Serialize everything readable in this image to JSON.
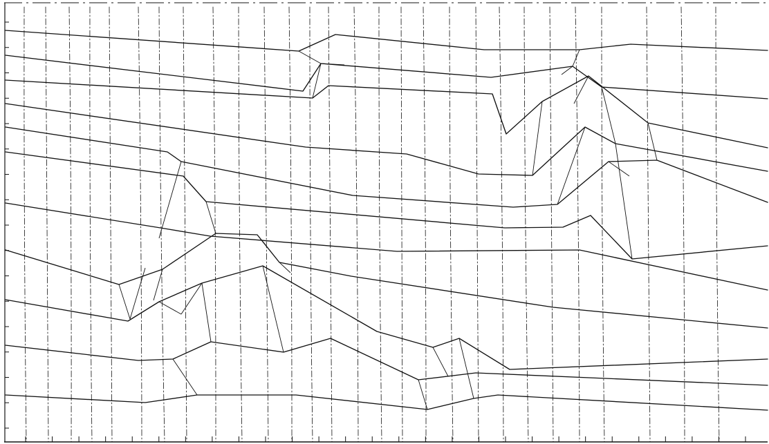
{
  "figure": {
    "type": "deformed-mesh",
    "ink_color": "#111111",
    "background_color": "#ffffff",
    "layer_line_count": 11,
    "grid_column_count": 28,
    "left_edge_tick_count": 17,
    "bottom_edge_tick_count": 28
  }
}
